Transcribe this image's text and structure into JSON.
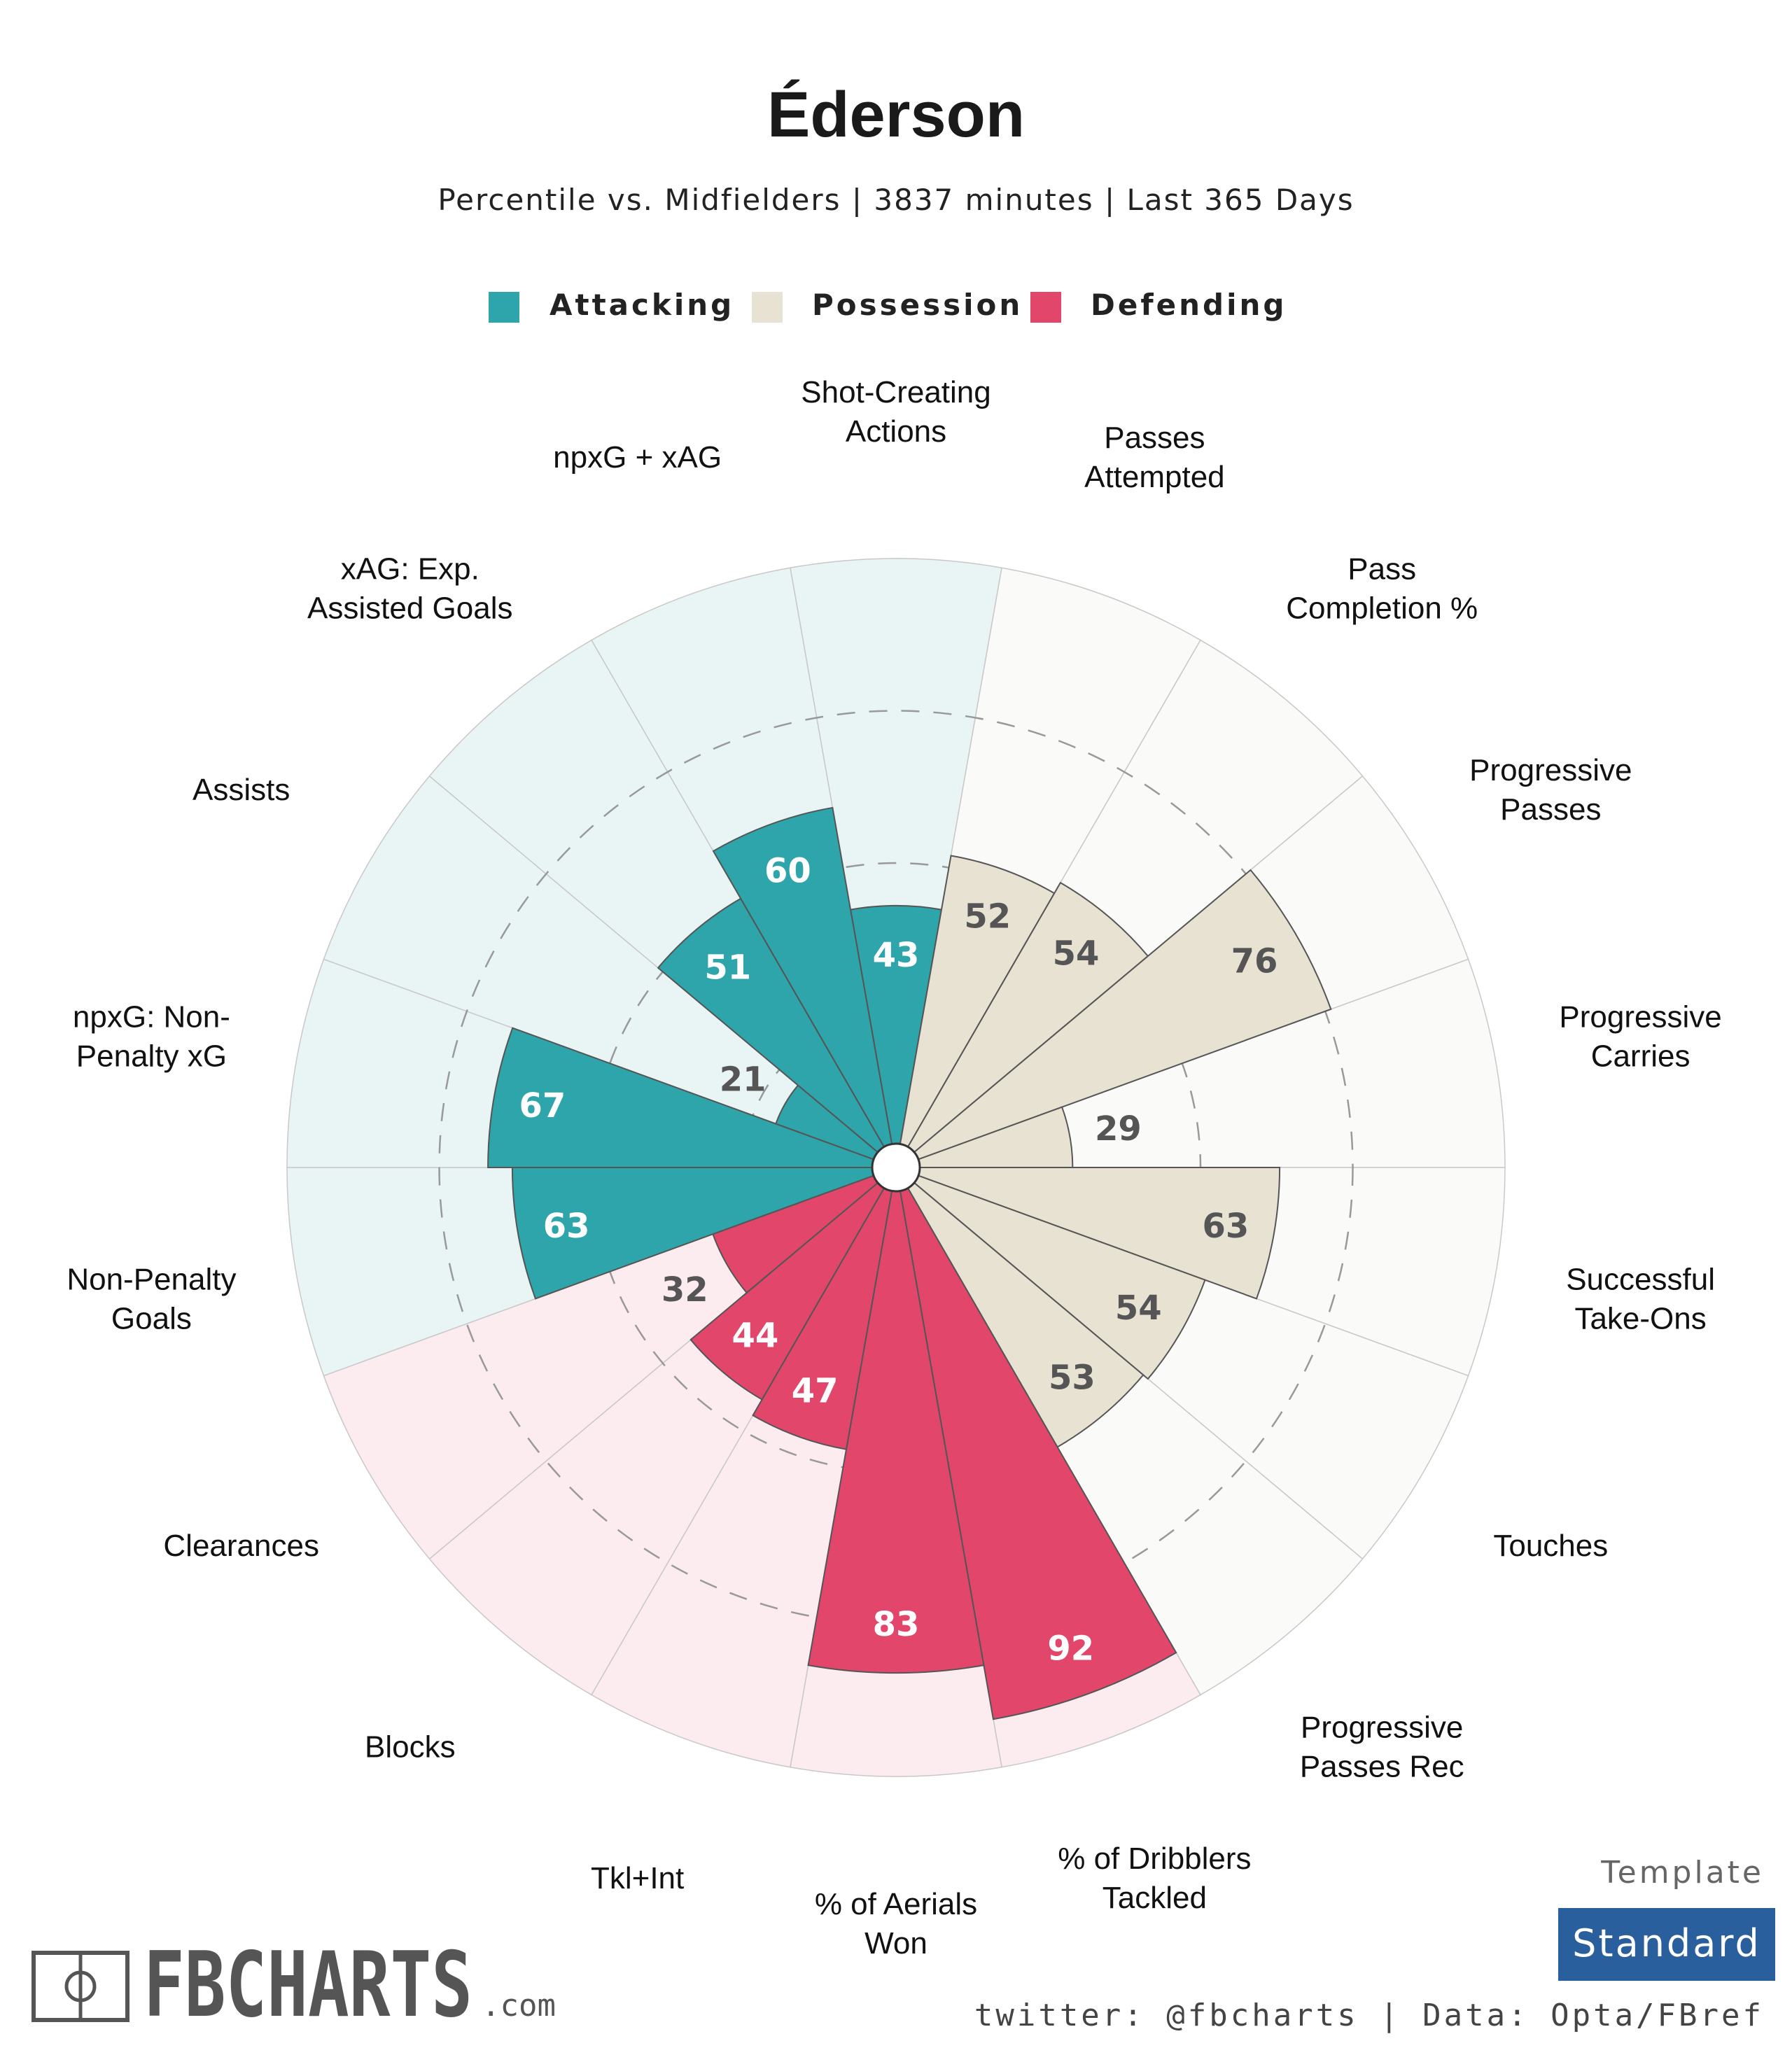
{
  "header": {
    "title": "Éderson",
    "subtitle": "Percentile vs. Midfielders | 3837 minutes | Last 365 Days"
  },
  "legend": [
    {
      "label": "Attacking",
      "color": "#2ea4ab"
    },
    {
      "label": "Possession",
      "color": "#e8e2d3"
    },
    {
      "label": "Defending",
      "color": "#e2476b"
    }
  ],
  "chart_data": {
    "type": "polar-bar",
    "range": [
      0,
      100
    ],
    "grid": "dashed rings at 25, 50, 75",
    "categories": [
      {
        "label": "Shot-Creating\nActions",
        "value": 43,
        "group": "Attacking"
      },
      {
        "label": "Passes\nAttempted",
        "value": 52,
        "group": "Possession"
      },
      {
        "label": "Pass\nCompletion %",
        "value": 54,
        "group": "Possession"
      },
      {
        "label": "Progressive\nPasses",
        "value": 76,
        "group": "Possession"
      },
      {
        "label": "Progressive\nCarries",
        "value": 29,
        "group": "Possession"
      },
      {
        "label": "Successful\nTake-Ons",
        "value": 63,
        "group": "Possession"
      },
      {
        "label": "Touches",
        "value": 54,
        "group": "Possession"
      },
      {
        "label": "Progressive\nPasses Rec",
        "value": 53,
        "group": "Possession"
      },
      {
        "label": "% of Dribblers\nTackled",
        "value": 92,
        "group": "Defending"
      },
      {
        "label": "% of Aerials\nWon",
        "value": 83,
        "group": "Defending"
      },
      {
        "label": "Tkl+Int",
        "value": 47,
        "group": "Defending"
      },
      {
        "label": "Blocks",
        "value": 44,
        "group": "Defending"
      },
      {
        "label": "Clearances",
        "value": 32,
        "group": "Defending"
      },
      {
        "label": "Non-Penalty\nGoals",
        "value": 63,
        "group": "Attacking"
      },
      {
        "label": "npxG: Non-\nPenalty xG",
        "value": 67,
        "group": "Attacking"
      },
      {
        "label": "Assists",
        "value": 21,
        "group": "Attacking"
      },
      {
        "label": "xAG: Exp.\nAssisted Goals",
        "value": 51,
        "group": "Attacking"
      },
      {
        "label": "npxG + xAG",
        "value": 60,
        "group": "Attacking"
      }
    ],
    "group_colors": {
      "Attacking": {
        "fill": "#2ea4ab",
        "bg": "#e9f5f5",
        "text": "#ffffff"
      },
      "Possession": {
        "fill": "#e8e2d3",
        "bg": "#fafaf8",
        "text": "#555555"
      },
      "Defending": {
        "fill": "#e2476b",
        "bg": "#fcebef",
        "text": "#ffffff"
      }
    }
  },
  "footer": {
    "brand": "FBCHARTS",
    "brand_suffix": ".com",
    "credit": "twitter: @fbcharts | Data: Opta/FBref",
    "template_label": "Template",
    "template_value": "Standard"
  }
}
